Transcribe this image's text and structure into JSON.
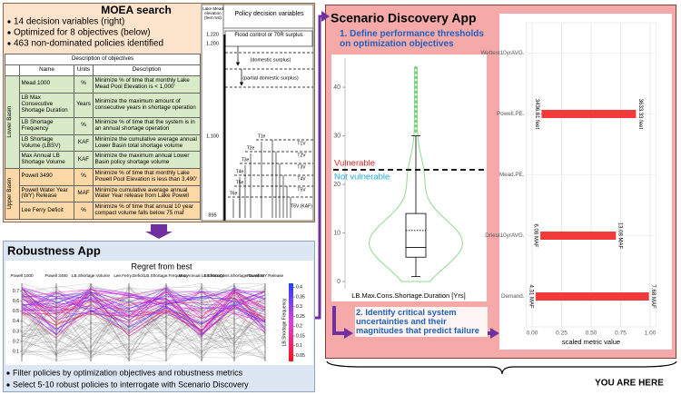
{
  "moea": {
    "title": "MOEA search",
    "bullets": [
      "14 decision variables (right)",
      "Optimized for 8 objectives (below)",
      "463 non-dominated policies identified"
    ],
    "objectives": {
      "header": "Description of objectives",
      "columns": [
        "Name",
        "Units",
        "Description"
      ],
      "groups": [
        {
          "name": "Lower Basin",
          "rows": [
            [
              "Mead 1000",
              "%",
              "Minimize % of time that monthly Lake Mead Pool Elevation is < 1,000'"
            ],
            [
              "LB Max Consecutive Shortage Duration",
              "Years",
              "Minimize the maximum amount of consecutive years in shortage operation"
            ],
            [
              "LB Shortage Frequency",
              "%",
              "Minimize % of time that the system is in an annual shortage operation"
            ],
            [
              "LB Shortage Volume (LBSV)",
              "KAF",
              "Minimize the cumulative average annual Lower Basin total shortage volume"
            ],
            [
              "Max Annual LB Shortage Volume",
              "KAF",
              "Minimize the maximum annual Lower Basin policy shortage volume"
            ]
          ]
        },
        {
          "name": "Upper Basin",
          "rows": [
            [
              "Powell 3490",
              "%",
              "Minimize % of time that monthly Lake Powell Pool Elevation is less than 3,490'"
            ],
            [
              "Powell Water Year (WY) Release",
              "MAF",
              "Minimize cumulative average annual Water Year release from Lake Powell"
            ],
            [
              "Lee Ferry Deficit",
              "%",
              "Minimize % of time that annual 10 year compact volume falls below 75 maf"
            ]
          ]
        }
      ]
    },
    "policy": {
      "elevation_header": "Lake Mead elevation (feet msl)",
      "header": "Policy decision variables",
      "elevations": [
        "1,220",
        "1,200",
        "1,100",
        "895"
      ],
      "flood_label": "Flood control or 70R surplus",
      "surplus_labels": [
        "(domestic surplus)",
        "(partial domestic surplus)"
      ],
      "tiers": [
        "T1e",
        "T2e",
        "T3e",
        "T4e",
        "T5e",
        "T6e"
      ],
      "volumes": [
        "T1V",
        "T2V",
        "T3V",
        "T4V",
        "T5V",
        "T6V (KAF)"
      ]
    }
  },
  "robustness": {
    "title": "Robustness App",
    "plot_title": "Regret from best",
    "axes": [
      "Powell 1000",
      "Powell 3490",
      "LB.Shortage.Volume",
      "Lee.Ferry.Deficit",
      "LB.Shortage.Frequency",
      "Max Annual LB Shortage",
      "LB.Max.Cons.Shortage.Duration",
      "Powell WY Release"
    ],
    "ylim": [
      0,
      0.78
    ],
    "yticks": [
      0.1,
      0.2,
      0.3,
      0.4,
      0.5,
      0.6,
      0.7
    ],
    "colorbar_label": "LB.Shortage.Frequency",
    "colorbar_lim": [
      0.02,
      0.42
    ],
    "colorbar_ticks": [
      0.05,
      0.1,
      0.15,
      0.2,
      0.25,
      0.3,
      0.35,
      0.4
    ],
    "bullets": [
      "Filter policies by optimization objectives and robustness metrics",
      "Select 5-10 robust policies to interrogate with Scenario Discovery"
    ]
  },
  "scenario": {
    "title": "Scenario Discovery App",
    "step1": "1. Define performance thresholds on optimization objectives",
    "step2": "2. Identify critical system uncertainties and their magnitudes that predict failure",
    "violin": {
      "ylim": [
        -1.5,
        44.5
      ],
      "yticks": [
        0,
        10,
        20,
        30,
        40
      ],
      "xlabel": "LB.Max.Cons.Shortage.Duration [Yrs]",
      "threshold": 23,
      "vulnerable_label": "Vulnerable",
      "not_vulnerable_label": "Not vulnerable",
      "box": {
        "min": 1,
        "q1": 5,
        "median": 7,
        "mean": 10.5,
        "q3": 14,
        "max": 30
      },
      "outliers": [
        31,
        32,
        33,
        34,
        35,
        36,
        37,
        38,
        39,
        40,
        41,
        42,
        43,
        44
      ]
    },
    "bars": {
      "categories": [
        "Wettest10yrAVG.",
        "Powell.PE.",
        "Mead.PE.",
        "Driest10yrAVG.",
        "Demand."
      ],
      "low": [
        null,
        0.08,
        null,
        0.07,
        0.03
      ],
      "high": [
        null,
        0.88,
        null,
        0.71,
        0.99
      ],
      "low_labels": [
        null,
        "3436.61 feet",
        null,
        "6.08 MAF",
        "4.31 MAF"
      ],
      "high_labels": [
        null,
        "3633.33 feet",
        null,
        "13.08 MAF",
        "7.68 MAF"
      ],
      "xlim": [
        -0.05,
        1.05
      ],
      "xticks": [
        {
          "value": 0,
          "label": "0.00"
        },
        {
          "value": 0.25,
          "label": "0.25"
        },
        {
          "value": 0.5,
          "label": "0.50"
        },
        {
          "value": 0.75,
          "label": "0.75"
        },
        {
          "value": 1,
          "label": "1.00"
        }
      ],
      "xlabel": "scaled metric value",
      "color": "#f23a3a"
    }
  },
  "footer": "YOU ARE HERE"
}
